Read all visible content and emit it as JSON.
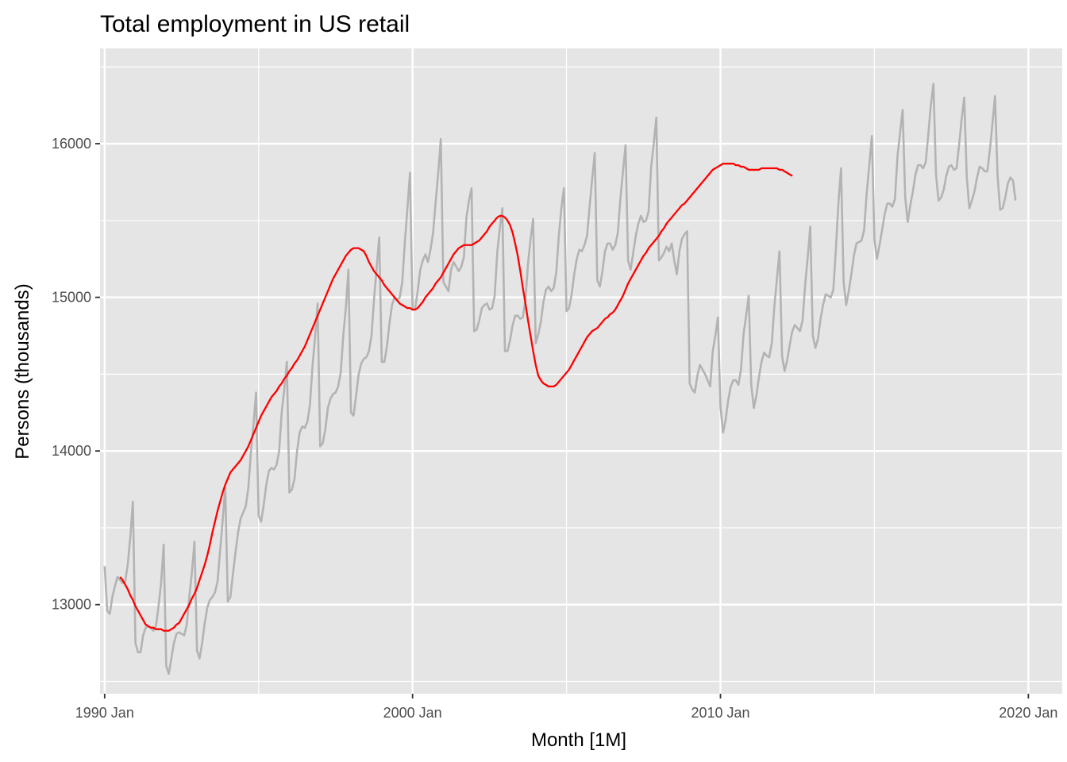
{
  "chart_data": {
    "type": "line",
    "title": "Total employment in US retail",
    "xlabel": "Month [1M]",
    "ylabel": "Persons (thousands)",
    "xlim": [
      1989.85,
      2021.1
    ],
    "ylim": [
      12420,
      16620
    ],
    "x_ticks": [
      {
        "value": 1990,
        "label": "1990 Jan"
      },
      {
        "value": 2000,
        "label": "2000 Jan"
      },
      {
        "value": 2010,
        "label": "2010 Jan"
      },
      {
        "value": 2020,
        "label": "2020 Jan"
      }
    ],
    "x_minor_ticks": [
      1995,
      2005,
      2015
    ],
    "y_ticks": [
      {
        "value": 13000,
        "label": "13000"
      },
      {
        "value": 14000,
        "label": "14000"
      },
      {
        "value": 15000,
        "label": "15000"
      },
      {
        "value": 16000,
        "label": "16000"
      }
    ],
    "y_minor_ticks": [
      12500,
      13500,
      14500,
      15500,
      16500
    ],
    "grid": true,
    "background": "#e5e5e5",
    "colors": {
      "series": "#b3b3b3",
      "trend": "#ff0000"
    },
    "series_start": 1990.0,
    "series_step_months": 1,
    "series": [
      {
        "values": [
          13250,
          12960,
          12940,
          13050,
          13120,
          13180,
          13160,
          13140,
          13150,
          13260,
          13440,
          13670,
          12750,
          12690,
          12690,
          12800,
          12850,
          12860,
          12850,
          12830,
          12860,
          12990,
          13140,
          13390,
          12600,
          12550,
          12650,
          12750,
          12810,
          12820,
          12810,
          12800,
          12870,
          13050,
          13210,
          13410,
          12700,
          12650,
          12750,
          12880,
          12980,
          13030,
          13050,
          13080,
          13150,
          13350,
          13550,
          13760,
          13020,
          13050,
          13200,
          13340,
          13470,
          13560,
          13600,
          13640,
          13760,
          13990,
          14170,
          14380,
          13580,
          13540,
          13650,
          13780,
          13870,
          13890,
          13880,
          13910,
          14000,
          14250,
          14400,
          14580,
          13730,
          13750,
          13820,
          14000,
          14120,
          14160,
          14150,
          14190,
          14300,
          14550,
          14740,
          14960,
          14030,
          14050,
          14140,
          14280,
          14340,
          14370,
          14380,
          14420,
          14510,
          14750,
          14930,
          15180,
          14250,
          14230,
          14360,
          14500,
          14570,
          14600,
          14610,
          14650,
          14750,
          14990,
          15190,
          15390,
          14580,
          14580,
          14680,
          14830,
          14950,
          15000,
          14980,
          15000,
          15100,
          15360,
          15580,
          15810,
          14920,
          14930,
          15040,
          15180,
          15240,
          15280,
          15230,
          15310,
          15420,
          15620,
          15810,
          16030,
          15100,
          15070,
          15040,
          15180,
          15230,
          15200,
          15170,
          15200,
          15260,
          15520,
          15630,
          15710,
          14780,
          14790,
          14850,
          14930,
          14950,
          14960,
          14920,
          14930,
          15010,
          15290,
          15450,
          15580,
          14650,
          14650,
          14720,
          14820,
          14880,
          14880,
          14860,
          14870,
          14990,
          15220,
          15380,
          15510,
          14700,
          14760,
          14840,
          14970,
          15050,
          15070,
          15040,
          15060,
          15160,
          15400,
          15580,
          15710,
          14910,
          14930,
          15020,
          15150,
          15250,
          15310,
          15300,
          15340,
          15400,
          15590,
          15770,
          15940,
          15110,
          15070,
          15170,
          15300,
          15350,
          15350,
          15310,
          15340,
          15420,
          15640,
          15820,
          15990,
          15240,
          15180,
          15290,
          15400,
          15480,
          15530,
          15490,
          15500,
          15560,
          15850,
          16000,
          16170,
          15240,
          15260,
          15290,
          15330,
          15300,
          15350,
          15240,
          15150,
          15300,
          15380,
          15410,
          15430,
          14440,
          14400,
          14380,
          14490,
          14560,
          14530,
          14500,
          14460,
          14420,
          14650,
          14750,
          14870,
          14290,
          14120,
          14200,
          14330,
          14420,
          14460,
          14460,
          14430,
          14530,
          14760,
          14880,
          15010,
          14430,
          14280,
          14360,
          14480,
          14580,
          14640,
          14620,
          14610,
          14700,
          14940,
          15120,
          15300,
          14620,
          14520,
          14590,
          14690,
          14780,
          14820,
          14800,
          14780,
          14850,
          15080,
          15260,
          15460,
          14750,
          14670,
          14730,
          14860,
          14950,
          15020,
          15010,
          15000,
          15050,
          15320,
          15620,
          15840,
          15100,
          14950,
          15040,
          15150,
          15270,
          15350,
          15360,
          15370,
          15440,
          15680,
          15860,
          16050,
          15380,
          15250,
          15340,
          15440,
          15540,
          15610,
          15610,
          15590,
          15640,
          15920,
          16070,
          16220,
          15650,
          15490,
          15600,
          15690,
          15800,
          15860,
          15860,
          15840,
          15880,
          16060,
          16250,
          16390,
          15800,
          15630,
          15650,
          15700,
          15790,
          15850,
          15860,
          15830,
          15840,
          15990,
          16160,
          16300,
          15780,
          15580,
          15630,
          15690,
          15780,
          15850,
          15840,
          15820,
          15820,
          15960,
          16130,
          16310,
          15790,
          15570,
          15580,
          15650,
          15740,
          15780,
          15760,
          15630
        ]
      }
    ],
    "trend": {
      "start": 1990.5,
      "step_months": 1,
      "values": [
        13180,
        13160,
        13130,
        13100,
        13060,
        13030,
        12990,
        12960,
        12930,
        12900,
        12870,
        12860,
        12850,
        12850,
        12840,
        12840,
        12840,
        12830,
        12830,
        12830,
        12840,
        12850,
        12870,
        12880,
        12910,
        12940,
        12970,
        13000,
        13040,
        13070,
        13110,
        13160,
        13210,
        13260,
        13320,
        13390,
        13470,
        13540,
        13610,
        13670,
        13730,
        13780,
        13820,
        13860,
        13880,
        13900,
        13920,
        13940,
        13970,
        14000,
        14030,
        14070,
        14110,
        14150,
        14190,
        14230,
        14260,
        14290,
        14320,
        14350,
        14370,
        14390,
        14420,
        14440,
        14470,
        14490,
        14520,
        14540,
        14570,
        14590,
        14620,
        14650,
        14680,
        14720,
        14760,
        14800,
        14840,
        14880,
        14920,
        14960,
        15000,
        15040,
        15080,
        15120,
        15150,
        15180,
        15210,
        15240,
        15270,
        15290,
        15310,
        15320,
        15320,
        15320,
        15310,
        15300,
        15270,
        15230,
        15200,
        15170,
        15150,
        15130,
        15110,
        15080,
        15060,
        15040,
        15020,
        15000,
        14980,
        14960,
        14950,
        14940,
        14930,
        14930,
        14920,
        14920,
        14930,
        14950,
        14970,
        15000,
        15020,
        15040,
        15060,
        15090,
        15110,
        15130,
        15160,
        15190,
        15220,
        15250,
        15280,
        15300,
        15320,
        15330,
        15340,
        15340,
        15340,
        15340,
        15350,
        15360,
        15370,
        15390,
        15410,
        15430,
        15460,
        15480,
        15500,
        15520,
        15530,
        15530,
        15520,
        15500,
        15470,
        15420,
        15350,
        15270,
        15170,
        15060,
        14960,
        14850,
        14750,
        14650,
        14560,
        14490,
        14460,
        14440,
        14430,
        14420,
        14420,
        14420,
        14430,
        14450,
        14470,
        14490,
        14510,
        14530,
        14560,
        14590,
        14620,
        14650,
        14680,
        14710,
        14740,
        14760,
        14780,
        14790,
        14800,
        14820,
        14840,
        14860,
        14870,
        14890,
        14900,
        14920,
        14950,
        14980,
        15010,
        15050,
        15090,
        15120,
        15150,
        15180,
        15210,
        15240,
        15270,
        15290,
        15320,
        15340,
        15360,
        15380,
        15400,
        15430,
        15450,
        15480,
        15500,
        15520,
        15540,
        15560,
        15580,
        15600,
        15610,
        15630,
        15650,
        15670,
        15690,
        15710,
        15730,
        15750,
        15770,
        15790,
        15810,
        15830,
        15840,
        15850,
        15860,
        15870,
        15870,
        15870,
        15870,
        15870,
        15860,
        15860,
        15850,
        15850,
        15840,
        15830,
        15830,
        15830,
        15830,
        15830,
        15840,
        15840,
        15840,
        15840,
        15840,
        15840,
        15840,
        15830,
        15830,
        15820,
        15810,
        15800,
        15790
      ]
    }
  }
}
